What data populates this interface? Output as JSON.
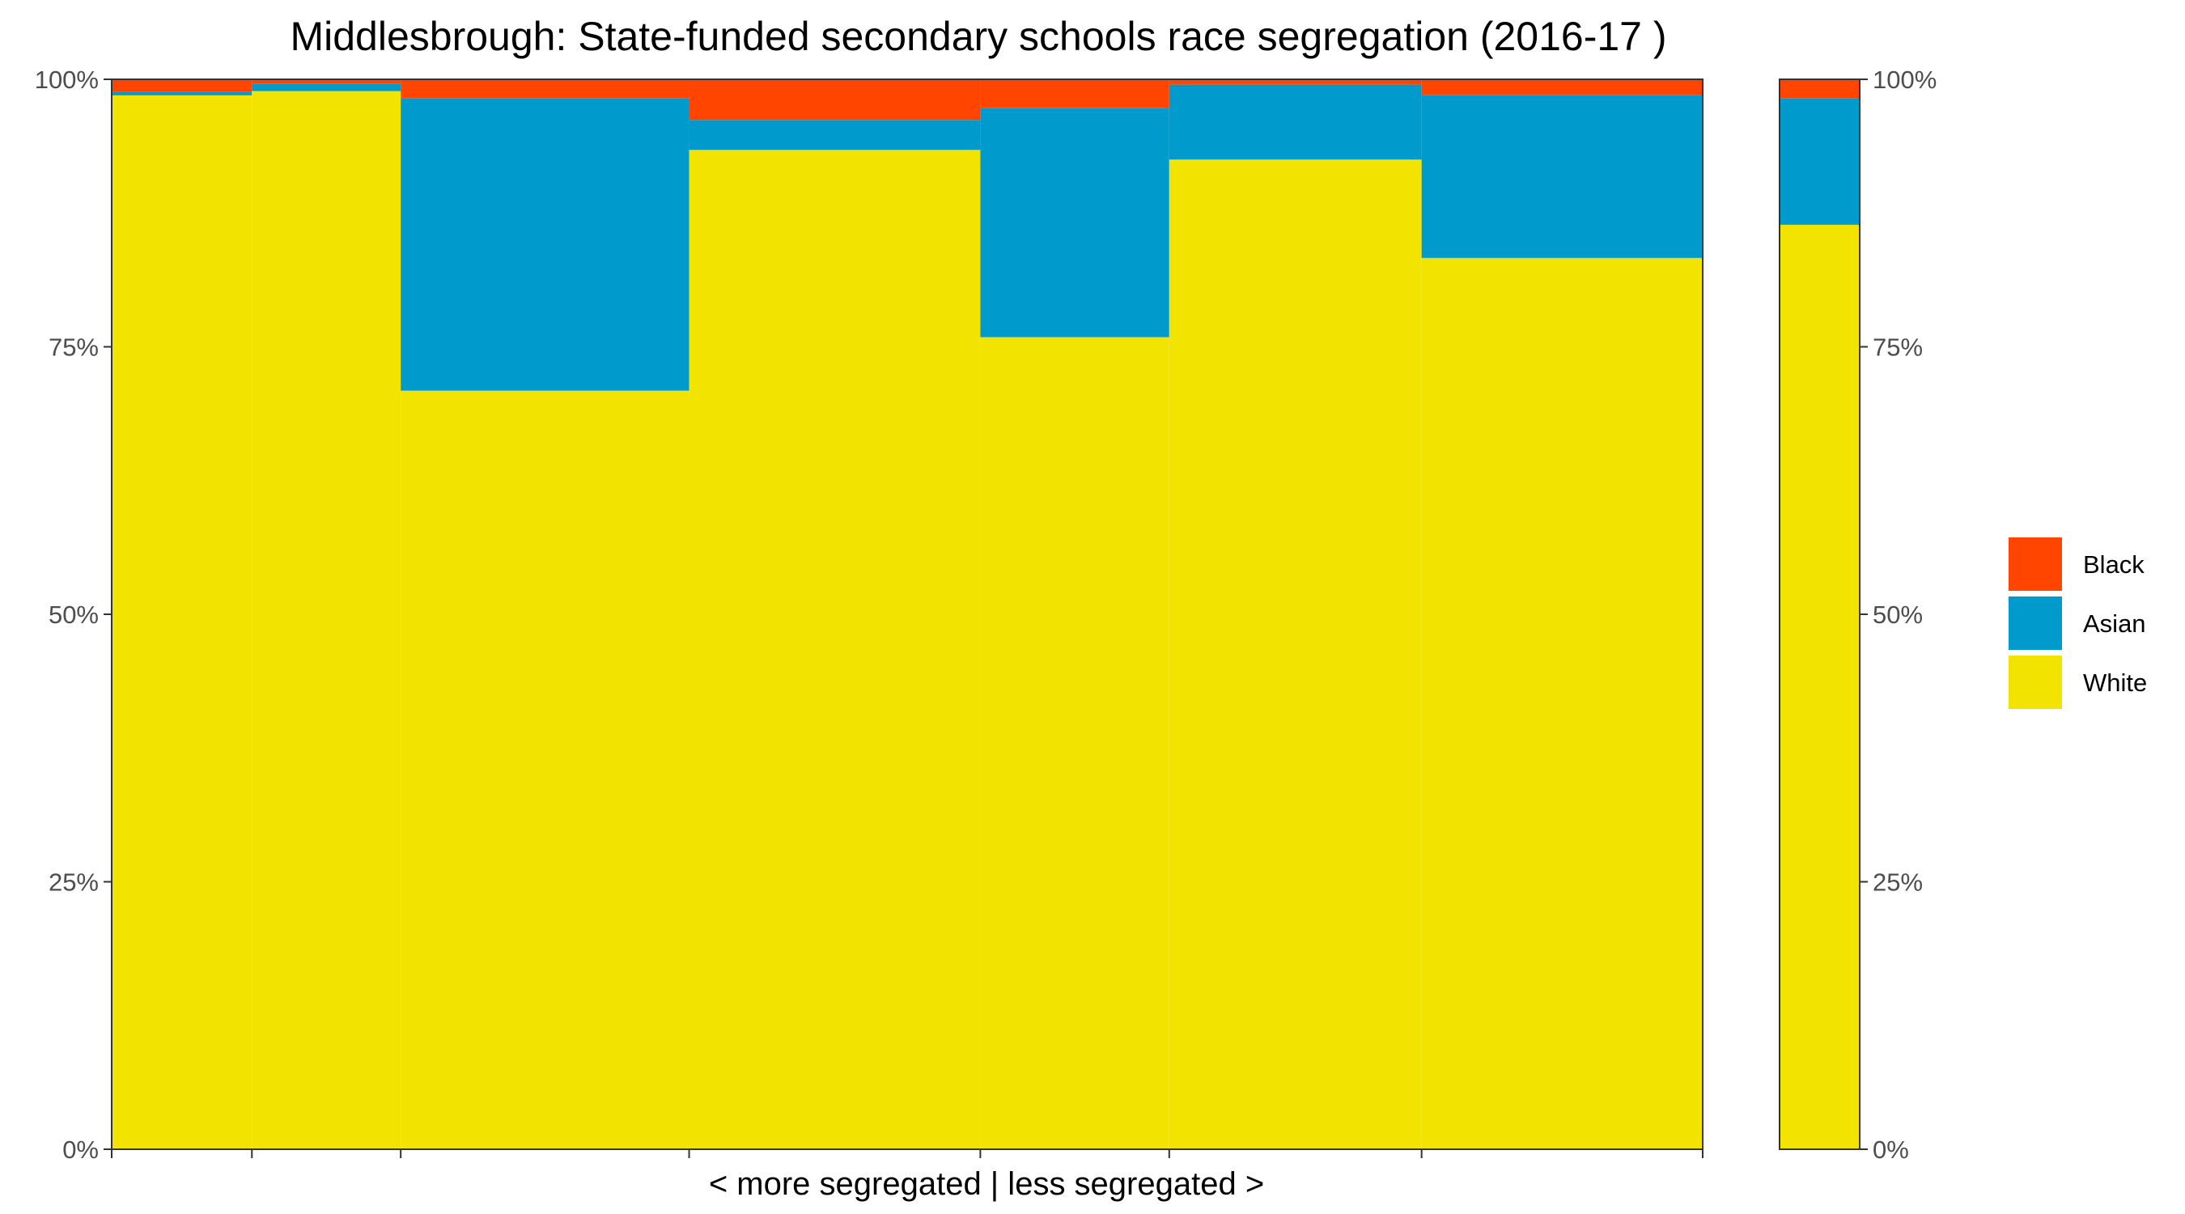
{
  "chart_data": {
    "type": "bar",
    "title": "Middlesbrough: State-funded secondary schools race segregation (2016-17 )",
    "xlabel": "< more segregated | less segregated >",
    "ylabel": "",
    "ylim": [
      0,
      1
    ],
    "y_ticks": [
      "0%",
      "25%",
      "50%",
      "75%",
      "100%"
    ],
    "stacked": true,
    "variable_width": true,
    "legend_position": "right",
    "grid": false,
    "series": [
      {
        "name": "White",
        "color": "#F3E300"
      },
      {
        "name": "Asian",
        "color": "#009ACD"
      },
      {
        "name": "Black",
        "color": "#FF4500"
      }
    ],
    "legend_order": [
      "Black",
      "Asian",
      "White"
    ],
    "bars": [
      {
        "width": 0.0899,
        "white": 0.985,
        "asian": 0.003,
        "black": 0.012
      },
      {
        "width": 0.0954,
        "white": 0.989,
        "asian": 0.007,
        "black": 0.004
      },
      {
        "width": 0.1849,
        "white": 0.709,
        "asian": 0.273,
        "black": 0.018
      },
      {
        "width": 0.1867,
        "white": 0.934,
        "asian": 0.028,
        "black": 0.038
      },
      {
        "width": 0.1211,
        "white": 0.759,
        "asian": 0.214,
        "black": 0.027
      },
      {
        "width": 0.1618,
        "white": 0.925,
        "asian": 0.07,
        "black": 0.005
      },
      {
        "width": 0.1802,
        "white": 0.833,
        "asian": 0.152,
        "black": 0.015
      }
    ],
    "overall": {
      "white": 0.864,
      "asian": 0.118,
      "black": 0.018
    }
  }
}
